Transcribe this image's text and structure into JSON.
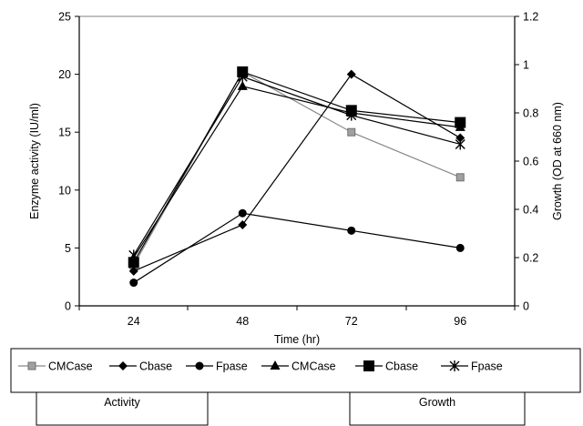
{
  "chart_data": {
    "type": "line",
    "x": [
      24,
      48,
      72,
      96
    ],
    "xlabel": "Time (hr)",
    "ylabel_left": "Enzyme activity (IU/ml)",
    "ylabel_right": "Growth (OD at 660 nm)",
    "xlim": [
      12,
      108
    ],
    "ylim_left": [
      0,
      25
    ],
    "ylim_right": [
      0,
      1.2
    ],
    "yticks_left": [
      "0",
      "5",
      "10",
      "15",
      "20",
      "25"
    ],
    "yticks_right": [
      "0",
      "0.2",
      "0.4",
      "0.6",
      "0.8",
      "1",
      "1.2"
    ],
    "xticks": [
      "24",
      "48",
      "72",
      "96"
    ],
    "grid": false,
    "legend_position": "bottom",
    "legend_groups": [
      "Activity",
      "Growth"
    ],
    "series": [
      {
        "name": "CMCase",
        "group": "Activity",
        "axis": "left",
        "marker": "square-hatched",
        "color": "#8c8c8c",
        "values": [
          3.5,
          20.2,
          15.0,
          11.1
        ]
      },
      {
        "name": "Cbase",
        "group": "Activity",
        "axis": "left",
        "marker": "diamond",
        "color": "#000000",
        "values": [
          3.0,
          7.0,
          20.0,
          14.5
        ]
      },
      {
        "name": "Fpase",
        "group": "Activity",
        "axis": "left",
        "marker": "circle",
        "color": "#000000",
        "values": [
          2.0,
          8.0,
          6.5,
          5.0
        ]
      },
      {
        "name": "CMCase",
        "group": "Growth",
        "axis": "right",
        "marker": "triangle",
        "color": "#000000",
        "values": [
          0.2,
          0.91,
          0.8,
          0.74
        ]
      },
      {
        "name": "Cbase",
        "group": "Growth",
        "axis": "right",
        "marker": "square",
        "color": "#000000",
        "values": [
          0.18,
          0.97,
          0.81,
          0.76
        ]
      },
      {
        "name": "Fpase",
        "group": "Growth",
        "axis": "right",
        "marker": "star",
        "color": "#000000",
        "values": [
          0.21,
          0.95,
          0.79,
          0.67
        ]
      }
    ]
  }
}
